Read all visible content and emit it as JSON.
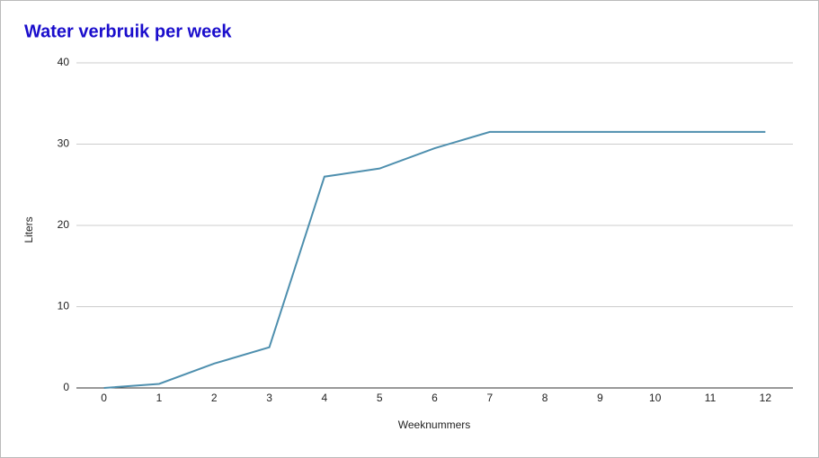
{
  "chart_data": {
    "type": "line",
    "title": "Water verbruik per week",
    "x_label": "Weeknummers",
    "y_label": "Liters",
    "categories": [
      "0",
      "1",
      "2",
      "3",
      "4",
      "5",
      "6",
      "7",
      "8",
      "9",
      "10",
      "11",
      "12"
    ],
    "series": [
      {
        "name": "Liters",
        "color": "#4e8fae",
        "values": [
          0,
          0.5,
          3,
          5,
          26,
          27,
          29.5,
          31.5,
          31.5,
          31.5,
          31.5,
          31.5,
          31.5
        ]
      }
    ],
    "ylim": [
      0,
      40
    ],
    "yticks": [
      0,
      10,
      20,
      30,
      40
    ],
    "grid": true
  }
}
